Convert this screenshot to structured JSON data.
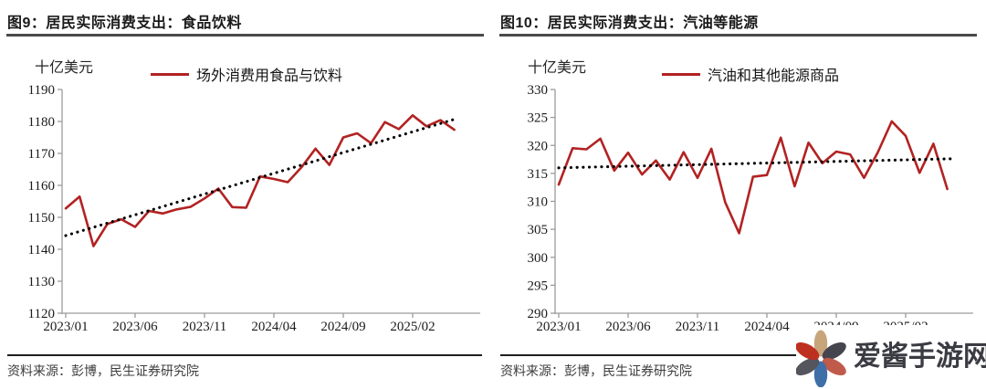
{
  "source_label": "资料来源：彭博，民生证券研究院",
  "watermark": {
    "text": "爱酱手游网",
    "text_color": "#3b3b43",
    "petal_colors": [
      "#c8a47a",
      "#45454f",
      "#c05a4b",
      "#3e6fa7",
      "#55555e",
      "#bd3020"
    ]
  },
  "chart_data": [
    {
      "type": "line",
      "title": "图9：居民实际消费支出：食品饮料",
      "unit_label": "十亿美元",
      "legend_position": "top",
      "grid": false,
      "ylim": [
        1120,
        1190
      ],
      "y_tick_step": 10,
      "y_tick_labels": [
        "1120",
        "1130",
        "1140",
        "1150",
        "1160",
        "1170",
        "1180",
        "1190"
      ],
      "x_tick_labels": [
        "2023/01",
        "2023/06",
        "2023/11",
        "2024/04",
        "2024/09",
        "2025/02"
      ],
      "x": [
        "2023/01",
        "2023/02",
        "2023/03",
        "2023/04",
        "2023/05",
        "2023/06",
        "2023/07",
        "2023/08",
        "2023/09",
        "2023/10",
        "2023/11",
        "2023/12",
        "2024/01",
        "2024/02",
        "2024/03",
        "2024/04",
        "2024/05",
        "2024/06",
        "2024/07",
        "2024/08",
        "2024/09",
        "2024/10",
        "2024/11",
        "2024/12",
        "2025/01",
        "2025/02",
        "2025/03",
        "2025/04",
        "2025/05"
      ],
      "series": [
        {
          "name": "场外消费用食品与饮料",
          "color": "#b22222",
          "values": [
            1152.8,
            1156.5,
            1141.0,
            1147.9,
            1149.4,
            1147.0,
            1152.0,
            1151.2,
            1152.5,
            1153.3,
            1155.9,
            1159.0,
            1153.2,
            1153.0,
            1162.8,
            1162.0,
            1161.0,
            1165.7,
            1171.5,
            1166.4,
            1175.0,
            1176.3,
            1173.2,
            1179.8,
            1177.6,
            1181.9,
            1178.5,
            1180.4,
            1177.4
          ]
        }
      ],
      "trendline": {
        "style": "dotted",
        "color": "#000000",
        "start": 1144.3,
        "end": 1181.0
      }
    },
    {
      "type": "line",
      "title": "图10：居民实际消费支出：汽油等能源",
      "unit_label": "十亿美元",
      "legend_position": "top",
      "grid": false,
      "ylim": [
        290,
        330
      ],
      "y_tick_step": 5,
      "y_tick_labels": [
        "290",
        "295",
        "300",
        "305",
        "310",
        "315",
        "320",
        "325",
        "330"
      ],
      "x_tick_labels": [
        "2023/01",
        "2023/06",
        "2023/11",
        "2024/04",
        "2024/09",
        "2025/02"
      ],
      "x": [
        "2023/01",
        "2023/02",
        "2023/03",
        "2023/04",
        "2023/05",
        "2023/06",
        "2023/07",
        "2023/08",
        "2023/09",
        "2023/10",
        "2023/11",
        "2023/12",
        "2024/01",
        "2024/02",
        "2024/03",
        "2024/04",
        "2024/05",
        "2024/06",
        "2024/07",
        "2024/08",
        "2024/09",
        "2024/10",
        "2024/11",
        "2024/12",
        "2025/01",
        "2025/02",
        "2025/03",
        "2025/04",
        "2025/05"
      ],
      "series": [
        {
          "name": "汽油和其他能源商品",
          "color": "#b22222",
          "values": [
            313.0,
            319.5,
            319.3,
            321.2,
            315.5,
            318.7,
            314.8,
            317.3,
            313.9,
            318.8,
            314.2,
            319.4,
            309.8,
            304.3,
            314.4,
            314.7,
            321.4,
            312.7,
            320.5,
            316.8,
            318.9,
            318.4,
            314.2,
            318.8,
            324.3,
            321.7,
            315.1,
            320.3,
            312.2
          ]
        }
      ],
      "trendline": {
        "style": "dotted",
        "color": "#000000",
        "start": 316.0,
        "end": 317.6
      }
    }
  ]
}
